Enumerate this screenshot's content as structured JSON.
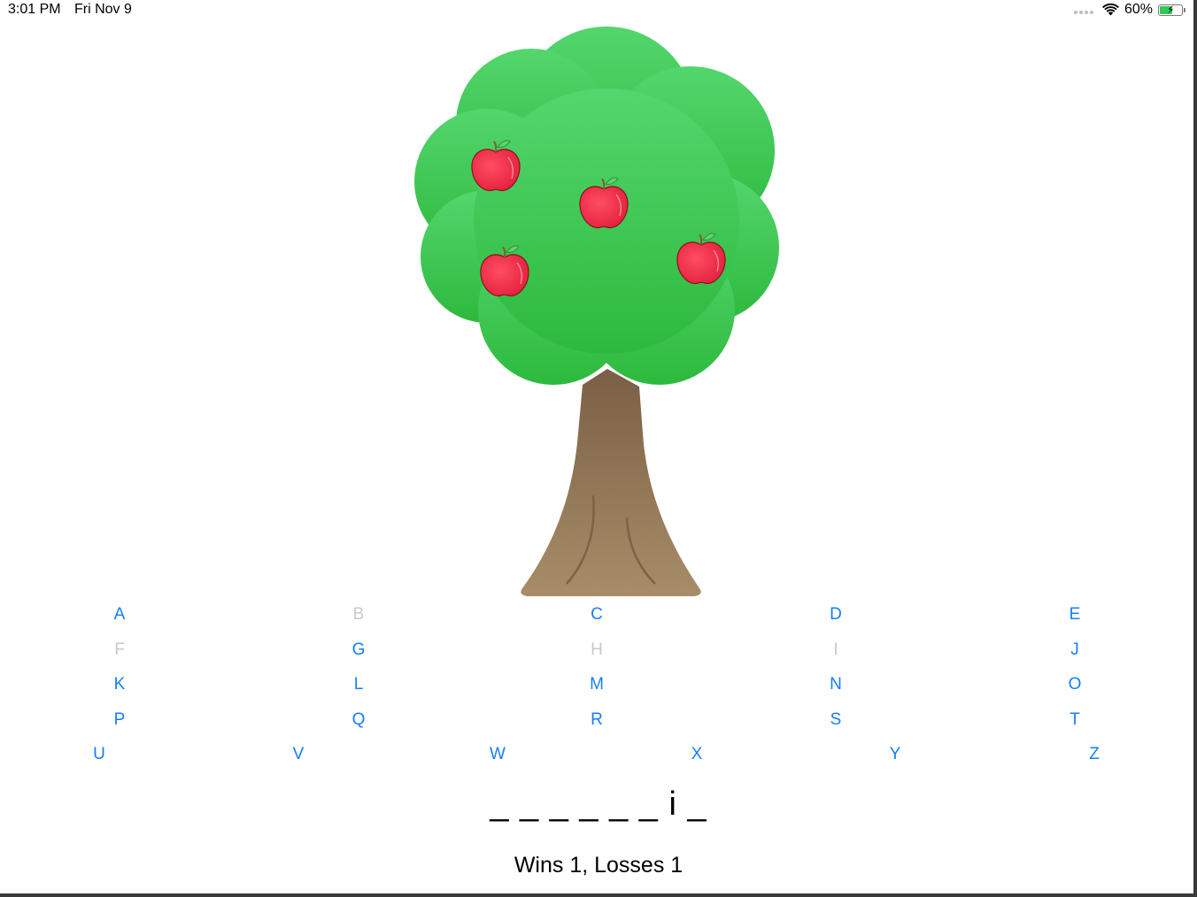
{
  "status_bar": {
    "time": "3:01 PM",
    "date": "Fri Nov 9",
    "battery_text": "60%",
    "battery_level": 0.6,
    "icons": [
      "wifi-icon",
      "battery-icon",
      "charging-bolt-icon"
    ]
  },
  "tree": {
    "apples_remaining": 4,
    "canopy_color": "#34c759",
    "apple_color": "#ff3b4f",
    "trunk_color": "#8a6a4a"
  },
  "letters": [
    {
      "label": "A",
      "enabled": true
    },
    {
      "label": "B",
      "enabled": false
    },
    {
      "label": "C",
      "enabled": true
    },
    {
      "label": "D",
      "enabled": true
    },
    {
      "label": "E",
      "enabled": true
    },
    {
      "label": "F",
      "enabled": false
    },
    {
      "label": "G",
      "enabled": true
    },
    {
      "label": "H",
      "enabled": false
    },
    {
      "label": "I",
      "enabled": false
    },
    {
      "label": "J",
      "enabled": true
    },
    {
      "label": "K",
      "enabled": true
    },
    {
      "label": "L",
      "enabled": true
    },
    {
      "label": "M",
      "enabled": true
    },
    {
      "label": "N",
      "enabled": true
    },
    {
      "label": "O",
      "enabled": true
    },
    {
      "label": "P",
      "enabled": true
    },
    {
      "label": "Q",
      "enabled": true
    },
    {
      "label": "R",
      "enabled": true
    },
    {
      "label": "S",
      "enabled": true
    },
    {
      "label": "T",
      "enabled": true
    },
    {
      "label": "U",
      "enabled": true
    },
    {
      "label": "V",
      "enabled": true
    },
    {
      "label": "W",
      "enabled": true
    },
    {
      "label": "X",
      "enabled": true
    },
    {
      "label": "Y",
      "enabled": true
    },
    {
      "label": "Z",
      "enabled": true
    }
  ],
  "accent_color": "#147efb",
  "disabled_color": "#c8c8cc",
  "word_display": "_ _ _ _ _ _ i _",
  "score": "Wins 1, Losses 1"
}
